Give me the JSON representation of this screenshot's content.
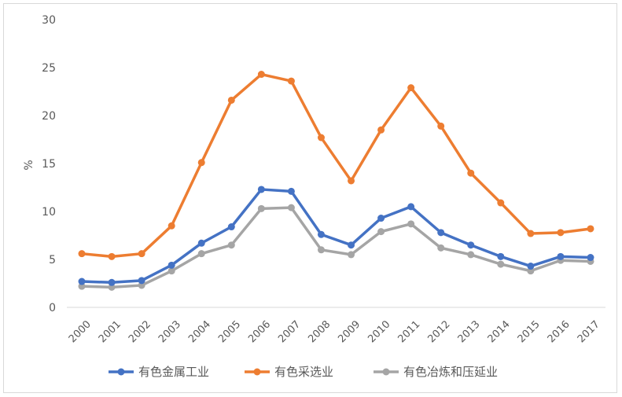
{
  "chart_data": {
    "type": "line",
    "title": "",
    "xlabel": "",
    "ylabel": "%",
    "ylim": [
      0,
      30
    ],
    "yticks": [
      0,
      5,
      10,
      15,
      20,
      25,
      30
    ],
    "grid": false,
    "legend_position": "bottom",
    "categories": [
      "2000",
      "2001",
      "2002",
      "2003",
      "2004",
      "2005",
      "2006",
      "2007",
      "2008",
      "2009",
      "2010",
      "2011",
      "2012",
      "2013",
      "2014",
      "2015",
      "2016",
      "2017"
    ],
    "series": [
      {
        "name": "有色金属工业",
        "color": "#4472c4",
        "values": [
          2.7,
          2.6,
          2.8,
          4.4,
          6.7,
          8.4,
          12.3,
          12.1,
          7.6,
          6.5,
          9.3,
          10.5,
          7.8,
          6.5,
          5.3,
          4.3,
          5.3,
          5.2
        ]
      },
      {
        "name": "有色采选业",
        "color": "#ed7d31",
        "values": [
          5.6,
          5.3,
          5.6,
          8.5,
          15.1,
          21.6,
          24.3,
          23.6,
          17.7,
          13.2,
          18.5,
          22.9,
          18.9,
          14.0,
          10.9,
          7.7,
          7.8,
          8.2
        ]
      },
      {
        "name": "有色冶炼和压延业",
        "color": "#a5a5a5",
        "values": [
          2.2,
          2.1,
          2.3,
          3.8,
          5.6,
          6.5,
          10.3,
          10.4,
          6.0,
          5.5,
          7.9,
          8.7,
          6.2,
          5.5,
          4.5,
          3.8,
          4.9,
          4.8
        ]
      }
    ]
  }
}
